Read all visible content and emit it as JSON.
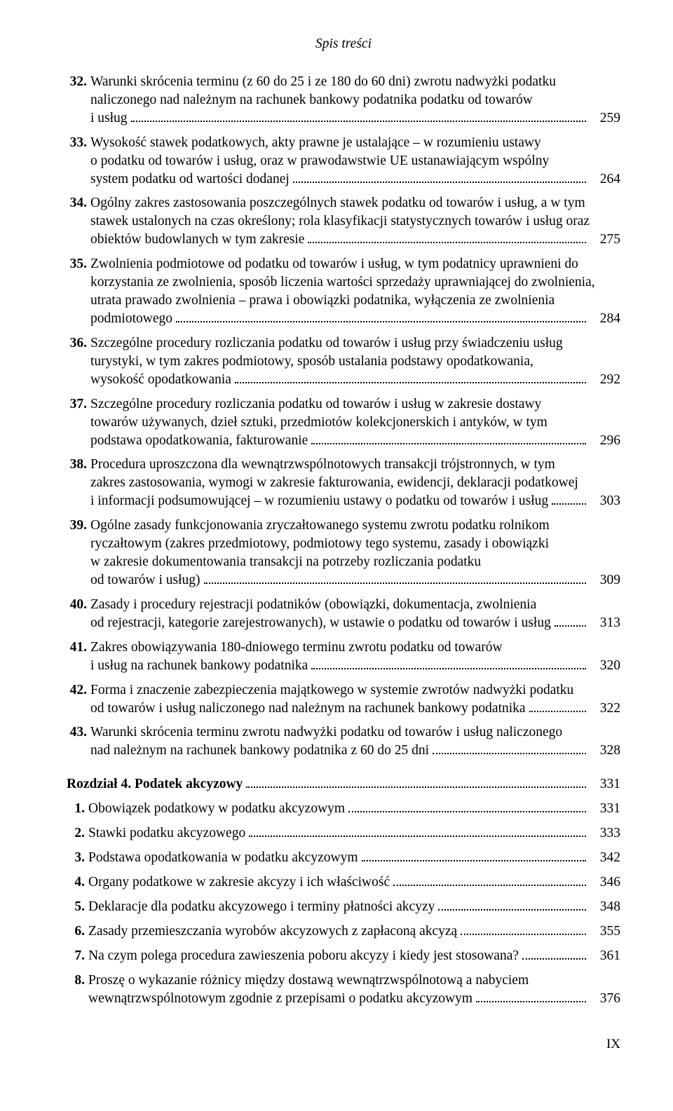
{
  "header": "Spis treści",
  "entries": [
    {
      "num": "32.",
      "lines": [
        "Warunki skrócenia terminu (z 60 do 25 i ze 180 do 60 dni) zwrotu nadwyżki podatku",
        "naliczonego nad należnym na rachunek bankowy podatnika podatku od towarów",
        "i usług"
      ],
      "page": "259"
    },
    {
      "num": "33.",
      "lines": [
        "Wysokość stawek podatkowych, akty prawne je ustalające – w rozumieniu ustawy",
        "o podatku od towarów i usług, oraz w prawodawstwie UE ustanawiającym wspólny",
        "system podatku od wartości dodanej"
      ],
      "page": "264"
    },
    {
      "num": "34.",
      "lines": [
        "Ogólny zakres zastosowania poszczególnych stawek podatku od towarów i usług, a w tym",
        "stawek ustalonych na czas określony; rola klasyfikacji statystycznych towarów i usług oraz",
        "obiektów budowlanych w tym zakresie"
      ],
      "page": "275"
    },
    {
      "num": "35.",
      "lines": [
        "Zwolnienia podmiotowe od podatku od towarów i usług, w tym podatnicy uprawnieni do",
        "korzystania ze zwolnienia, sposób liczenia wartości sprzedaży uprawniającej do zwolnienia,",
        "utrata prawado zwolnienia – prawa i obowiązki podatnika, wyłączenia ze zwolnienia",
        "podmiotowego"
      ],
      "page": "284"
    },
    {
      "num": "36.",
      "lines": [
        "Szczególne procedury rozliczania podatku od towarów i usług przy świadczeniu usług",
        "turystyki, w tym zakres podmiotowy, sposób ustalania podstawy opodatkowania,",
        "wysokość opodatkowania"
      ],
      "page": "292"
    },
    {
      "num": "37.",
      "lines": [
        "Szczególne procedury rozliczania podatku od towarów i usług w zakresie dostawy",
        "towarów używanych, dzieł sztuki, przedmiotów kolekcjonerskich i antyków, w tym",
        "podstawa opodatkowania, fakturowanie"
      ],
      "page": "296"
    },
    {
      "num": "38.",
      "lines": [
        "Procedura uproszczona dla wewnątrzwspólnotowych transakcji trójstronnych, w tym",
        "zakres zastosowania, wymogi w zakresie fakturowania, ewidencji, deklaracji podatkowej",
        "i informacji podsumowującej – w rozumieniu ustawy o podatku od towarów i usług"
      ],
      "page": "303"
    },
    {
      "num": "39.",
      "lines": [
        "Ogólne zasady funkcjonowania zryczałtowanego systemu zwrotu podatku rolnikom",
        "ryczałtowym (zakres przedmiotowy, podmiotowy tego systemu, zasady i obowiązki",
        "w zakresie dokumentowania transakcji na potrzeby rozliczania podatku",
        "od towarów i usług)"
      ],
      "page": "309"
    },
    {
      "num": "40.",
      "lines": [
        "Zasady i procedury rejestracji podatników (obowiązki, dokumentacja, zwolnienia",
        "od rejestracji, kategorie zarejestrowanych), w ustawie o podatku od towarów i usług"
      ],
      "page": "313"
    },
    {
      "num": "41.",
      "lines": [
        "Zakres obowiązywania 180-dniowego terminu zwrotu podatku od towarów",
        "i usług na rachunek bankowy podatnika"
      ],
      "page": "320"
    },
    {
      "num": "42.",
      "lines": [
        "Forma i znaczenie zabezpieczenia majątkowego w systemie zwrotów nadwyżki podatku",
        "od towarów i usług naliczonego nad należnym na rachunek bankowy podatnika"
      ],
      "page": "322"
    },
    {
      "num": "43.",
      "lines": [
        "Warunki skrócenia terminu zwrotu nadwyżki podatku od towarów i usług naliczonego",
        "nad należnym na rachunek bankowy podatnika z 60 do 25 dni"
      ],
      "page": "328"
    }
  ],
  "chapter": {
    "label": "Rozdział 4. Podatek akcyzowy",
    "page": "331"
  },
  "subentries": [
    {
      "num": "1.",
      "lines": [
        "Obowiązek podatkowy w podatku akcyzowym"
      ],
      "page": "331"
    },
    {
      "num": "2.",
      "lines": [
        "Stawki podatku akcyzowego"
      ],
      "page": "333"
    },
    {
      "num": "3.",
      "lines": [
        "Podstawa opodatkowania w podatku akcyzowym"
      ],
      "page": "342"
    },
    {
      "num": "4.",
      "lines": [
        "Organy podatkowe w zakresie akcyzy i ich właściwość"
      ],
      "page": "346"
    },
    {
      "num": "5.",
      "lines": [
        "Deklaracje dla podatku akcyzowego i terminy płatności akcyzy"
      ],
      "page": "348"
    },
    {
      "num": "6.",
      "lines": [
        "Zasady przemieszczania wyrobów akcyzowych z zapłaconą akcyzą"
      ],
      "page": "355"
    },
    {
      "num": "7.",
      "lines": [
        "Na czym polega procedura zawieszenia poboru akcyzy i kiedy jest stosowana?"
      ],
      "page": "361"
    },
    {
      "num": "8.",
      "lines": [
        "Proszę o wykazanie różnicy między dostawą wewnątrzwspólnotową a nabyciem",
        "wewnątrzwspólnotowym zgodnie z przepisami o podatku akcyzowym"
      ],
      "page": "376"
    }
  ],
  "footer": "IX",
  "style": {
    "background_color": "#ffffff",
    "text_color": "#000000",
    "font_family": "Minion Pro, Adobe Garamond Pro, Garamond, Georgia, serif",
    "body_fontsize": 19.5,
    "header_fontsize": 19.5
  }
}
